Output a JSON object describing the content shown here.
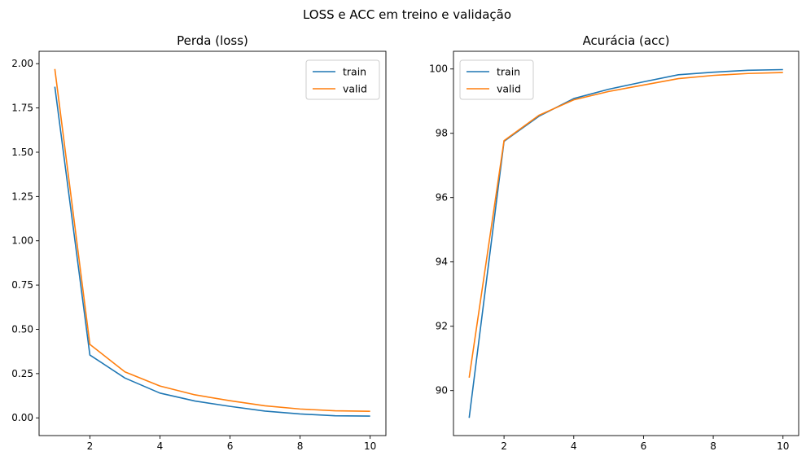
{
  "figure": {
    "suptitle": "LOSS e ACC em treino e validação"
  },
  "colors": {
    "train": "#1f77b4",
    "valid": "#ff7f0e"
  },
  "chart_data": [
    {
      "type": "line",
      "title": "Perda (loss)",
      "xlabel": "",
      "ylabel": "",
      "xlim": [
        0.55,
        10.45
      ],
      "ylim": [
        -0.1,
        2.07
      ],
      "xticks": [
        2,
        4,
        6,
        8,
        10
      ],
      "xtick_labels": [
        "2",
        "4",
        "6",
        "8",
        "10"
      ],
      "yticks": [
        0.0,
        0.25,
        0.5,
        0.75,
        1.0,
        1.25,
        1.5,
        1.75,
        2.0
      ],
      "ytick_labels": [
        "0.00",
        "0.25",
        "0.50",
        "0.75",
        "1.00",
        "1.25",
        "1.50",
        "1.75",
        "2.00"
      ],
      "legend_position": "top-right",
      "grid": false,
      "x": [
        1,
        2,
        3,
        4,
        5,
        6,
        7,
        8,
        9,
        10
      ],
      "series": [
        {
          "name": "train",
          "values": [
            1.87,
            0.355,
            0.225,
            0.14,
            0.095,
            0.065,
            0.038,
            0.022,
            0.012,
            0.01
          ]
        },
        {
          "name": "valid",
          "values": [
            1.97,
            0.415,
            0.26,
            0.18,
            0.13,
            0.097,
            0.068,
            0.05,
            0.04,
            0.037
          ]
        }
      ]
    },
    {
      "type": "line",
      "title": "Acurácia (acc)",
      "xlabel": "",
      "ylabel": "",
      "xlim": [
        0.55,
        10.45
      ],
      "ylim": [
        88.6,
        100.55
      ],
      "xticks": [
        2,
        4,
        6,
        8,
        10
      ],
      "xtick_labels": [
        "2",
        "4",
        "6",
        "8",
        "10"
      ],
      "yticks": [
        90,
        92,
        94,
        96,
        98,
        100
      ],
      "ytick_labels": [
        "90",
        "92",
        "94",
        "96",
        "98",
        "100"
      ],
      "legend_position": "top-left",
      "grid": false,
      "x": [
        1,
        2,
        3,
        4,
        5,
        6,
        7,
        8,
        9,
        10
      ],
      "series": [
        {
          "name": "train",
          "values": [
            89.15,
            97.75,
            98.53,
            99.08,
            99.37,
            99.6,
            99.82,
            99.9,
            99.96,
            99.98
          ]
        },
        {
          "name": "valid",
          "values": [
            90.4,
            97.77,
            98.56,
            99.04,
            99.3,
            99.5,
            99.7,
            99.8,
            99.86,
            99.89
          ]
        }
      ]
    }
  ]
}
